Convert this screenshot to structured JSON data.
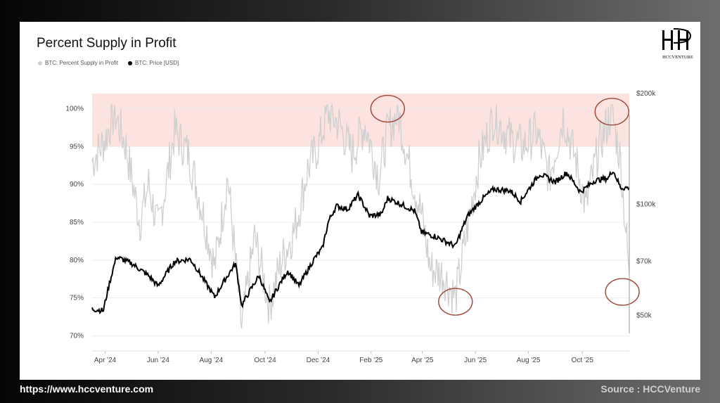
{
  "footer": {
    "website": "https://www.hccventure.com",
    "source": "Source : HCCVenture"
  },
  "brand": {
    "logo_text": "HCCVENTURE"
  },
  "colors": {
    "supply": "#cfcfcf",
    "price": "#000000",
    "band": "#fde3df",
    "circle": "#a0453a"
  },
  "chart_data": {
    "type": "line",
    "title": "Percent Supply in Profit",
    "legend": [
      "BTC: Percent Supply in Profit",
      "BTC: Price [USD]"
    ],
    "legend_position": "top-left",
    "x_ticks": [
      "Apr '24",
      "Jun '24",
      "Aug '24",
      "Oct '24",
      "Dec '24",
      "Feb '25",
      "Apr '25",
      "Jun '25",
      "Aug '25",
      "Oct '25"
    ],
    "y_left_ticks": [
      "100%",
      "95%",
      "90%",
      "85%",
      "80%",
      "75%",
      "70%"
    ],
    "y_left_range": [
      68,
      102
    ],
    "y_right_ticks": [
      "$200k",
      "$100k",
      "$70k",
      "$50k"
    ],
    "y_right_scale": "log",
    "y_right_range": [
      40000,
      200000
    ],
    "highlight_band": {
      "from": 95,
      "to": 102
    },
    "date_range": [
      "2024-02-15",
      "2025-10-25"
    ],
    "series": [
      {
        "name": "BTC: Percent Supply in Profit",
        "axis": "left",
        "x": [
          "2024-02-15",
          "2024-03-01",
          "2024-03-12",
          "2024-03-25",
          "2024-04-10",
          "2024-04-20",
          "2024-05-01",
          "2024-05-20",
          "2024-06-05",
          "2024-06-20",
          "2024-07-05",
          "2024-07-20",
          "2024-08-05",
          "2024-08-20",
          "2024-09-06",
          "2024-09-20",
          "2024-10-05",
          "2024-10-20",
          "2024-11-01",
          "2024-11-12",
          "2024-11-25",
          "2024-12-10",
          "2024-12-25",
          "2025-01-10",
          "2025-01-20",
          "2025-02-01",
          "2025-02-15",
          "2025-02-28",
          "2025-03-10",
          "2025-03-25",
          "2025-04-08",
          "2025-04-20",
          "2025-05-05",
          "2025-05-22",
          "2025-06-10",
          "2025-06-25",
          "2025-07-10",
          "2025-07-25",
          "2025-08-10",
          "2025-08-25",
          "2025-09-05",
          "2025-09-20",
          "2025-10-05",
          "2025-10-15",
          "2025-10-25"
        ],
        "y": [
          93,
          96,
          99.5,
          95,
          85,
          90,
          84,
          97,
          94,
          87,
          79,
          91,
          71,
          83,
          74,
          80,
          84,
          92,
          95,
          99.5,
          98,
          94,
          98,
          91,
          97,
          99.5,
          92,
          86,
          79,
          78,
          75,
          83,
          93,
          99,
          96,
          95,
          97,
          91,
          99,
          93,
          87,
          95,
          99.6,
          93,
          78
        ]
      },
      {
        "name": "BTC: Price [USD]",
        "axis": "right",
        "x": [
          "2024-02-15",
          "2024-02-28",
          "2024-03-14",
          "2024-04-01",
          "2024-04-20",
          "2024-05-01",
          "2024-05-20",
          "2024-06-07",
          "2024-06-25",
          "2024-07-05",
          "2024-07-29",
          "2024-08-05",
          "2024-08-25",
          "2024-09-06",
          "2024-09-27",
          "2024-10-10",
          "2024-10-29",
          "2024-11-06",
          "2024-11-13",
          "2024-11-22",
          "2024-12-05",
          "2024-12-17",
          "2024-12-30",
          "2025-01-13",
          "2025-01-20",
          "2025-02-01",
          "2025-02-20",
          "2025-02-28",
          "2025-03-15",
          "2025-04-08",
          "2025-04-22",
          "2025-05-10",
          "2025-05-22",
          "2025-06-10",
          "2025-06-22",
          "2025-07-14",
          "2025-08-01",
          "2025-08-14",
          "2025-08-30",
          "2025-09-15",
          "2025-10-01",
          "2025-10-06",
          "2025-10-15",
          "2025-10-25"
        ],
        "y": [
          52000,
          51500,
          72000,
          69000,
          64000,
          60000,
          70000,
          71000,
          61000,
          56000,
          69000,
          53000,
          64000,
          54000,
          66000,
          60000,
          72000,
          76000,
          90000,
          99000,
          97000,
          106000,
          93000,
          94000,
          104000,
          101000,
          96000,
          84000,
          82000,
          77000,
          93000,
          104000,
          110000,
          109000,
          102000,
          121000,
          115000,
          122000,
          108000,
          116000,
          118000,
          124000,
          111000,
          111000
        ]
      }
    ],
    "annotations": [
      {
        "shape": "circle",
        "x": "2025-01-20",
        "y": 100,
        "axis": "left"
      },
      {
        "shape": "circle",
        "x": "2025-04-08",
        "y": 74.5,
        "axis": "left"
      },
      {
        "shape": "circle",
        "x": "2025-10-05",
        "y": 99.6,
        "axis": "left"
      },
      {
        "shape": "circle",
        "x": "2025-10-17",
        "y": 75.8,
        "axis": "left"
      }
    ]
  }
}
